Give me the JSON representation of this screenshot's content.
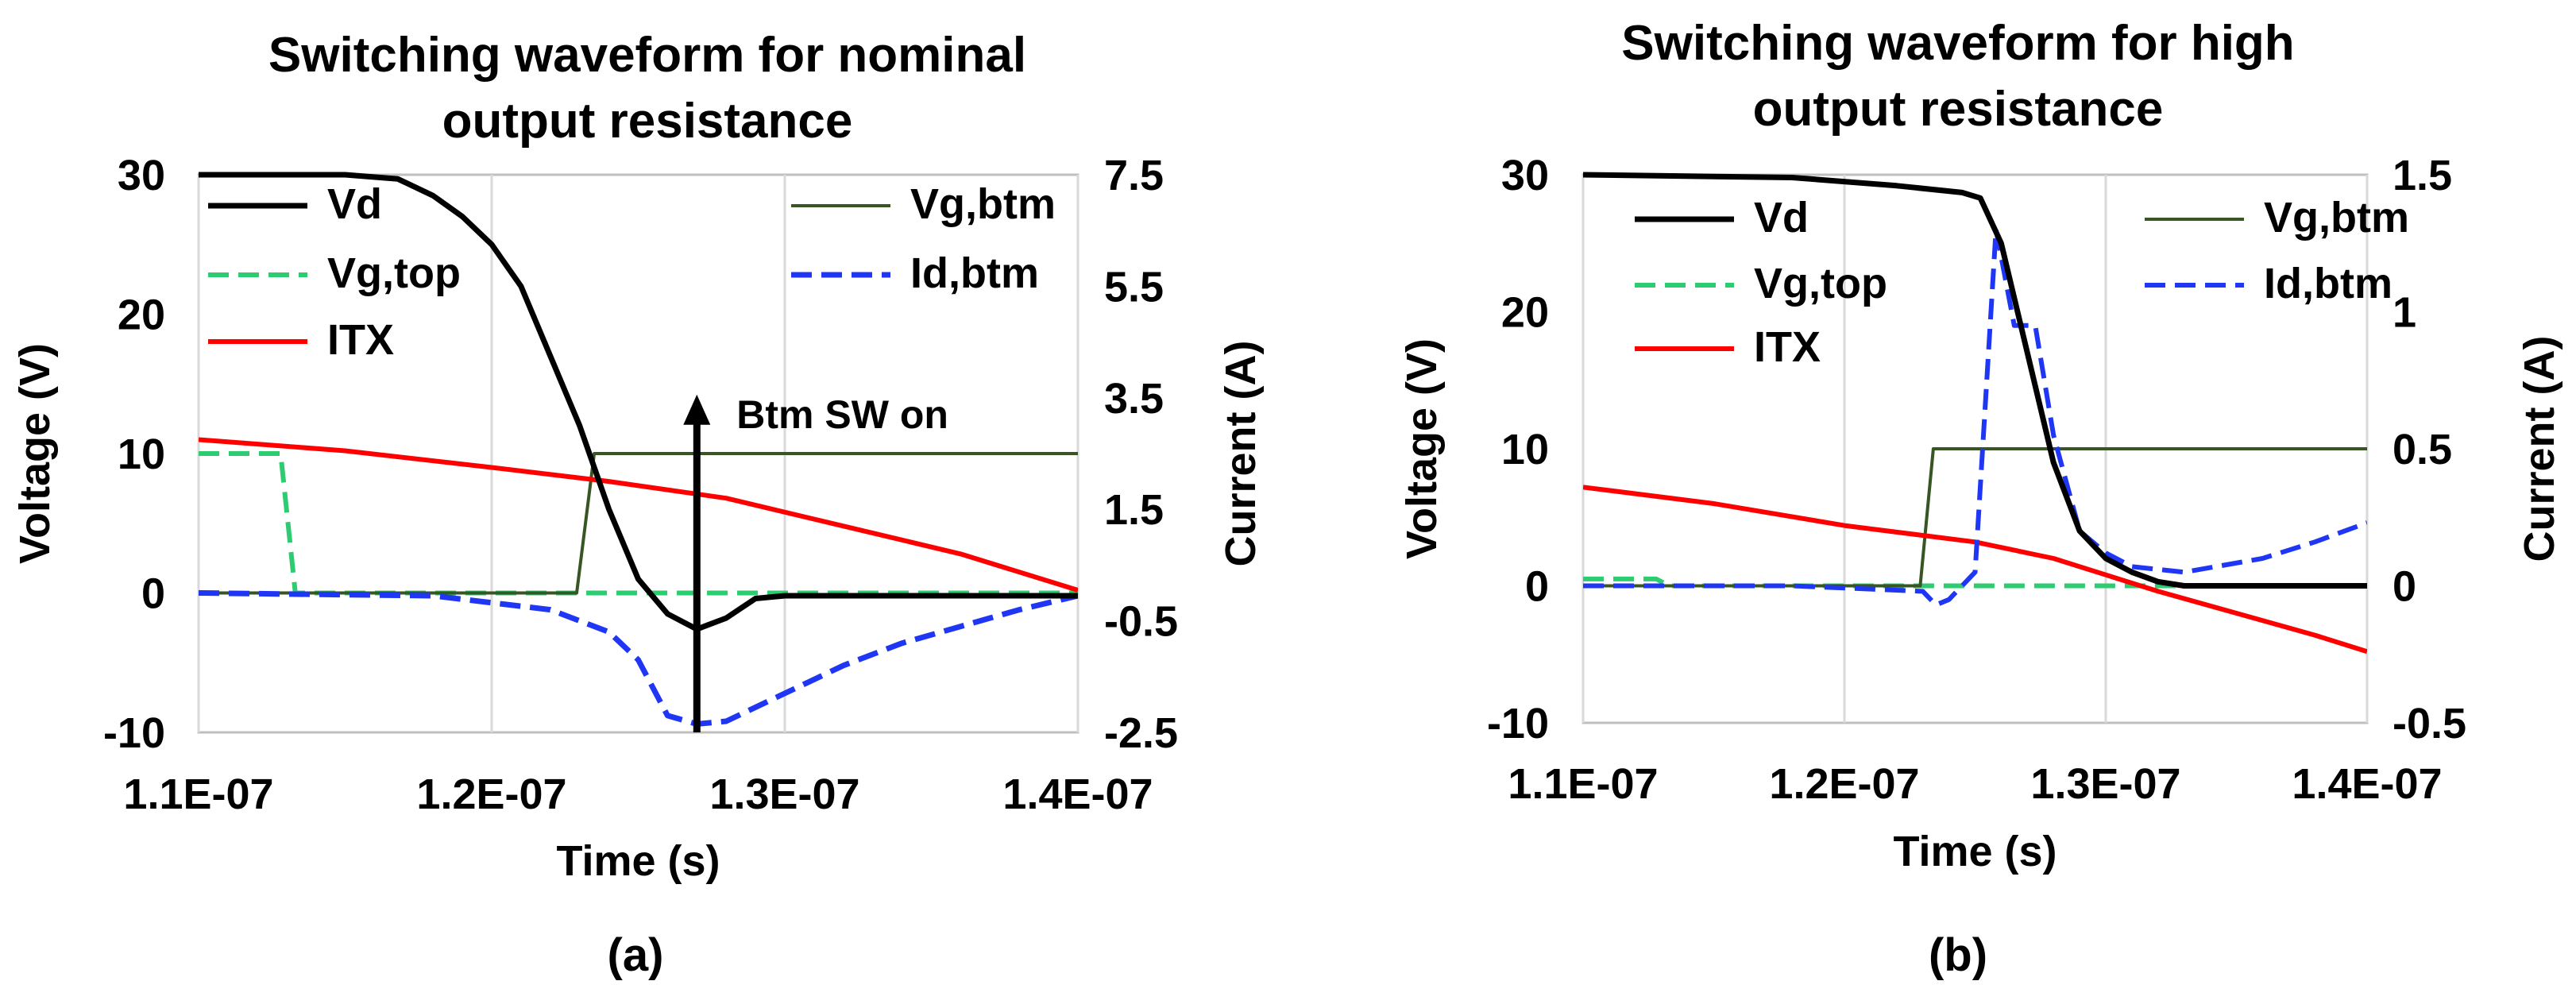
{
  "chart_data": [
    {
      "type": "line",
      "panel_label": "(a)",
      "title": [
        "Switching waveform for nominal",
        "output resistance"
      ],
      "xlabel": "Time (s)",
      "ylabel_left": "Voltage (V)",
      "ylabel_right": "Current (A)",
      "xlim": [
        1.1e-07,
        1.4e-07
      ],
      "ylim_left": [
        -10,
        30
      ],
      "ylim_right": [
        -2.5,
        7.5
      ],
      "x_ticks": [
        "1.1E-07",
        "1.2E-07",
        "1.3E-07",
        "1.4E-07"
      ],
      "y_ticks_left": [
        "30",
        "20",
        "10",
        "0",
        "-10"
      ],
      "y_ticks_right": [
        "7.5",
        "5.5",
        "3.5",
        "1.5",
        "-0.5",
        "-2.5"
      ],
      "grid": "vertical",
      "legend_placement": "top-left",
      "annotation": {
        "text": "Btm SW on",
        "x": 1.27e-07,
        "y_from": -10,
        "y_to": 14
      },
      "series": [
        {
          "name": "Vd",
          "axis": "left",
          "color": "#000000",
          "dash": "solid",
          "width": 7,
          "points": [
            [
              1.1e-07,
              30
            ],
            [
              1.15e-07,
              30
            ],
            [
              1.168e-07,
              29.7
            ],
            [
              1.18e-07,
              28.5
            ],
            [
              1.19e-07,
              27
            ],
            [
              1.2e-07,
              25
            ],
            [
              1.21e-07,
              22
            ],
            [
              1.22e-07,
              17
            ],
            [
              1.23e-07,
              12
            ],
            [
              1.24e-07,
              6
            ],
            [
              1.25e-07,
              1
            ],
            [
              1.26e-07,
              -1.5
            ],
            [
              1.27e-07,
              -2.6
            ],
            [
              1.28e-07,
              -1.8
            ],
            [
              1.29e-07,
              -0.4
            ],
            [
              1.3e-07,
              -0.2
            ],
            [
              1.4e-07,
              -0.2
            ]
          ]
        },
        {
          "name": "Vg,btm",
          "axis": "left",
          "color": "#375623",
          "dash": "solid",
          "width": 4,
          "points": [
            [
              1.1e-07,
              0
            ],
            [
              1.229e-07,
              0
            ],
            [
              1.235e-07,
              10
            ],
            [
              1.4e-07,
              10
            ]
          ]
        },
        {
          "name": "Vg,top",
          "axis": "left",
          "color": "#2ECC71",
          "dash": "dash",
          "width": 6,
          "points": [
            [
              1.1e-07,
              10
            ],
            [
              1.128e-07,
              10
            ],
            [
              1.133e-07,
              0
            ],
            [
              1.4e-07,
              0
            ]
          ]
        },
        {
          "name": "Id,btm",
          "axis": "right",
          "color": "#1F37F5",
          "dash": "dash",
          "width": 7,
          "points": [
            [
              1.1e-07,
              0
            ],
            [
              1.18e-07,
              -0.05
            ],
            [
              1.22e-07,
              -0.3
            ],
            [
              1.24e-07,
              -0.7
            ],
            [
              1.25e-07,
              -1.2
            ],
            [
              1.26e-07,
              -2.2
            ],
            [
              1.27e-07,
              -2.35
            ],
            [
              1.28e-07,
              -2.3
            ],
            [
              1.3e-07,
              -1.8
            ],
            [
              1.32e-07,
              -1.3
            ],
            [
              1.34e-07,
              -0.9
            ],
            [
              1.36e-07,
              -0.6
            ],
            [
              1.38e-07,
              -0.3
            ],
            [
              1.4e-07,
              -0.05
            ]
          ]
        },
        {
          "name": "ITX",
          "axis": "right",
          "color": "#FF0000",
          "dash": "solid",
          "width": 6,
          "points": [
            [
              1.1e-07,
              2.75
            ],
            [
              1.15e-07,
              2.55
            ],
            [
              1.2e-07,
              2.25
            ],
            [
              1.24e-07,
              2.0
            ],
            [
              1.28e-07,
              1.7
            ],
            [
              1.32e-07,
              1.2
            ],
            [
              1.36e-07,
              0.7
            ],
            [
              1.4e-07,
              0.05
            ]
          ]
        }
      ]
    },
    {
      "type": "line",
      "panel_label": "(b)",
      "title": [
        "Switching waveform for high",
        "output resistance"
      ],
      "xlabel": "Time (s)",
      "ylabel_left": "Voltage (V)",
      "ylabel_right": "Current (A)",
      "xlim": [
        1.1e-07,
        1.4e-07
      ],
      "ylim_left": [
        -10,
        30
      ],
      "ylim_right": [
        -0.5,
        1.5
      ],
      "x_ticks": [
        "1.1E-07",
        "1.2E-07",
        "1.3E-07",
        "1.4E-07"
      ],
      "y_ticks_left": [
        "30",
        "20",
        "10",
        "0",
        "-10"
      ],
      "y_ticks_right": [
        "1.5",
        "1",
        "0.5",
        "0",
        "-0.5"
      ],
      "grid": "vertical",
      "legend_placement": "top-left",
      "series": [
        {
          "name": "Vd",
          "axis": "left",
          "color": "#000000",
          "dash": "solid",
          "width": 7,
          "points": [
            [
              1.1e-07,
              30
            ],
            [
              1.18e-07,
              29.8
            ],
            [
              1.22e-07,
              29.2
            ],
            [
              1.245e-07,
              28.7
            ],
            [
              1.252e-07,
              28.3
            ],
            [
              1.26e-07,
              25
            ],
            [
              1.27e-07,
              17
            ],
            [
              1.28e-07,
              9
            ],
            [
              1.29e-07,
              4
            ],
            [
              1.3e-07,
              2
            ],
            [
              1.31e-07,
              1
            ],
            [
              1.32e-07,
              0.3
            ],
            [
              1.33e-07,
              0
            ],
            [
              1.4e-07,
              0
            ]
          ]
        },
        {
          "name": "Vg,btm",
          "axis": "left",
          "color": "#375623",
          "dash": "solid",
          "width": 4,
          "points": [
            [
              1.1e-07,
              0
            ],
            [
              1.229e-07,
              0
            ],
            [
              1.234e-07,
              10
            ],
            [
              1.4e-07,
              10
            ]
          ]
        },
        {
          "name": "Vg,top",
          "axis": "left",
          "color": "#2ECC71",
          "dash": "dash",
          "width": 6,
          "points": [
            [
              1.1e-07,
              0.5
            ],
            [
              1.128e-07,
              0.5
            ],
            [
              1.133e-07,
              0
            ],
            [
              1.4e-07,
              0
            ]
          ]
        },
        {
          "name": "Id,btm",
          "axis": "right",
          "color": "#1F37F5",
          "dash": "dash",
          "width": 6,
          "points": [
            [
              1.1e-07,
              0
            ],
            [
              1.18e-07,
              0
            ],
            [
              1.23e-07,
              -0.02
            ],
            [
              1.235e-07,
              -0.07
            ],
            [
              1.24e-07,
              -0.05
            ],
            [
              1.25e-07,
              0.05
            ],
            [
              1.258e-07,
              1.3
            ],
            [
              1.265e-07,
              0.95
            ],
            [
              1.273e-07,
              0.95
            ],
            [
              1.28e-07,
              0.55
            ],
            [
              1.29e-07,
              0.2
            ],
            [
              1.3e-07,
              0.12
            ],
            [
              1.31e-07,
              0.07
            ],
            [
              1.33e-07,
              0.05
            ],
            [
              1.36e-07,
              0.1
            ],
            [
              1.38e-07,
              0.16
            ],
            [
              1.4e-07,
              0.23
            ]
          ]
        },
        {
          "name": "ITX",
          "axis": "right",
          "color": "#FF0000",
          "dash": "solid",
          "width": 6,
          "points": [
            [
              1.1e-07,
              0.36
            ],
            [
              1.15e-07,
              0.3
            ],
            [
              1.2e-07,
              0.22
            ],
            [
              1.25e-07,
              0.16
            ],
            [
              1.28e-07,
              0.1
            ],
            [
              1.3e-07,
              0.04
            ],
            [
              1.32e-07,
              -0.02
            ],
            [
              1.35e-07,
              -0.1
            ],
            [
              1.38e-07,
              -0.18
            ],
            [
              1.4e-07,
              -0.24
            ]
          ]
        }
      ]
    }
  ]
}
